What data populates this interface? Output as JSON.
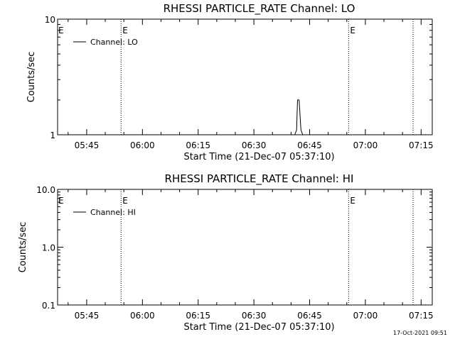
{
  "chart_data": [
    {
      "type": "line",
      "title": "RHESSI PARTICLE_RATE Channel: LO",
      "xlabel": "Start Time (21-Dec-07 05:37:10)",
      "ylabel": "Counts/sec",
      "y_scale": "log",
      "ylim": [
        1,
        10
      ],
      "y_tick_labels": [
        "1",
        "10"
      ],
      "x_range": [
        "05:37:10",
        "07:18:00"
      ],
      "x_tick_labels": [
        "05:45",
        "06:00",
        "06:15",
        "06:30",
        "06:45",
        "07:00",
        "07:15"
      ],
      "legend_position": "top-left",
      "series": [
        {
          "name": "Channel: LO",
          "x": [
            "06:41:00",
            "06:41:30",
            "06:41:45",
            "06:42:10",
            "06:42:40",
            "06:43:10"
          ],
          "y": [
            1,
            1.1,
            2,
            2,
            1.1,
            1
          ]
        }
      ],
      "event_markers": [
        {
          "time": "05:54:15",
          "label": "E"
        },
        {
          "time": "06:55:30",
          "label": "E"
        },
        {
          "time": "07:12:50",
          "label": ""
        }
      ],
      "edge_label": "E"
    },
    {
      "type": "line",
      "title": "RHESSI PARTICLE_RATE Channel: HI",
      "xlabel": "Start Time (21-Dec-07 05:37:10)",
      "ylabel": "Counts/sec",
      "y_scale": "log",
      "ylim": [
        0.1,
        10
      ],
      "y_tick_labels": [
        "0.1",
        "1.0",
        "10.0"
      ],
      "x_range": [
        "05:37:10",
        "07:18:00"
      ],
      "x_tick_labels": [
        "05:45",
        "06:00",
        "06:15",
        "06:30",
        "06:45",
        "07:00",
        "07:15"
      ],
      "legend_position": "top-left",
      "series": [
        {
          "name": "Channel: HI",
          "x": [],
          "y": []
        }
      ],
      "event_markers": [
        {
          "time": "05:54:15",
          "label": "E"
        },
        {
          "time": "06:55:30",
          "label": "E"
        },
        {
          "time": "07:12:50",
          "label": ""
        }
      ],
      "edge_label": "E"
    }
  ],
  "footer": {
    "timestamp": "17-Oct-2021 09:51"
  }
}
